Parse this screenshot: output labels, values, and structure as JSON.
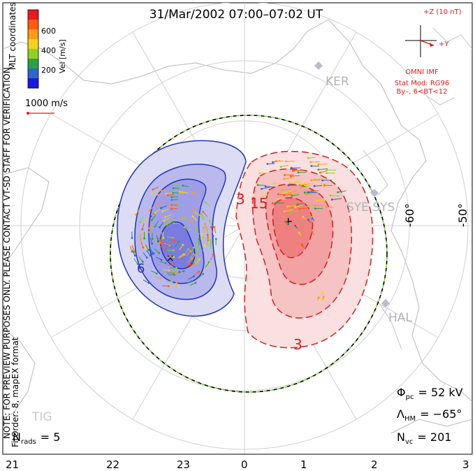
{
  "title": "31/Mar/2002 07:00–07:02 UT",
  "colorbar": {
    "label": "Vel [m/s]",
    "ticks": [
      "600",
      "400",
      "200"
    ],
    "colors": [
      "#e8191f",
      "#ff5a14",
      "#ff9a1a",
      "#f2d21c",
      "#8fd12a",
      "#2e9e4a",
      "#2f66c7",
      "#1a1ae0"
    ]
  },
  "coords_label": "MLT coordinates",
  "notice": "NOTE: FOR PREVIEW PURPOSES ONLY. PLEASE CONTACT VT-SD STAFF FOR VERIFICATION.",
  "fitorder": "FitOrder: 8, mapEX format",
  "scale_vector": "1000 m/s",
  "imf": {
    "z_label": "+Z (10 nT)",
    "y_label": "+Y",
    "source": "OMNI IMF",
    "stat_mod": "Stat Mod: RG96",
    "bin": "By–, 6<BT<12"
  },
  "stations": [
    {
      "name": "KER"
    },
    {
      "name": "SYE SYS"
    },
    {
      "name": "HAL"
    },
    {
      "name": "TIG"
    }
  ],
  "lat_labels": [
    "-60°",
    "-50°"
  ],
  "contour_labels": [
    "3",
    "15",
    "3",
    "6"
  ],
  "stats": {
    "phi_pc": {
      "symbol": "Φ",
      "sub": "pc",
      "value": "= 52 kV"
    },
    "lambda_hm": {
      "symbol": "Λ",
      "sub": "HM",
      "value": "= −65°"
    },
    "n_vc": {
      "symbol": "N",
      "sub": "vc",
      "value": "= 201"
    },
    "n_rads": {
      "symbol": "N",
      "sub": "rads",
      "value": "= 5"
    }
  },
  "mlt_ticks": [
    "21",
    "22",
    "23",
    "0",
    "1",
    "2",
    "3"
  ],
  "accent": {
    "negative_cell": "#2233bb",
    "positive_cell": "#cc2222",
    "boundary": "#77cc33"
  }
}
